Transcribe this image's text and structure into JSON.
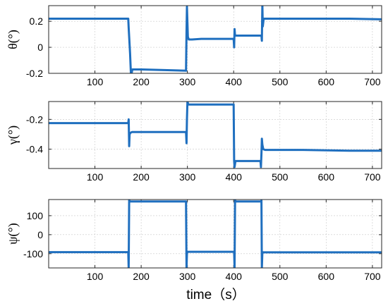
{
  "chart_data": [
    {
      "type": "line",
      "ylabel": "θ(°)",
      "xlim": [
        0,
        720
      ],
      "ylim": [
        -0.2,
        0.32
      ],
      "xticks": [
        100,
        200,
        300,
        400,
        500,
        600,
        700
      ],
      "yticks": [
        -0.2,
        0,
        0.2
      ],
      "ytick_labels": [
        "-0.2",
        "0",
        "0.2"
      ],
      "grid": true,
      "color": "#1f6fbf",
      "series": [
        {
          "x": [
            0,
            172,
            173,
            176,
            178,
            181,
            185,
            200,
            250,
            297,
            298,
            299,
            301,
            303,
            306,
            310,
            330,
            380,
            400,
            401,
            402,
            403,
            404,
            406,
            420,
            450,
            460,
            461,
            462,
            463,
            465,
            468,
            480,
            550,
            650,
            720
          ],
          "y": [
            0.22,
            0.22,
            0.15,
            -0.05,
            -0.22,
            -0.17,
            -0.17,
            -0.17,
            -0.175,
            -0.18,
            0.12,
            0.31,
            0.08,
            0.06,
            0.06,
            0.06,
            0.065,
            0.065,
            0.065,
            0.0,
            0.14,
            0.09,
            0.09,
            0.09,
            0.09,
            0.09,
            0.09,
            0.05,
            0.33,
            0.16,
            0.22,
            0.22,
            0.22,
            0.22,
            0.22,
            0.215
          ]
        }
      ]
    },
    {
      "type": "line",
      "ylabel": "γ(°)",
      "xlim": [
        0,
        720
      ],
      "ylim": [
        -0.53,
        -0.08
      ],
      "xticks": [
        100,
        200,
        300,
        400,
        500,
        600,
        700
      ],
      "yticks": [
        -0.4,
        -0.2
      ],
      "ytick_labels": [
        "-0.4",
        "-0.2"
      ],
      "grid": true,
      "color": "#1f6fbf",
      "series": [
        {
          "x": [
            0,
            172,
            173,
            174,
            175,
            177,
            180,
            200,
            250,
            297,
            298,
            299,
            300,
            302,
            305,
            350,
            400,
            401,
            402,
            404,
            406,
            420,
            458,
            459,
            460,
            461,
            462,
            464,
            468,
            480,
            550,
            650,
            720
          ],
          "y": [
            -0.225,
            -0.225,
            -0.2,
            -0.38,
            -0.3,
            -0.29,
            -0.285,
            -0.285,
            -0.285,
            -0.285,
            -0.36,
            -0.2,
            -0.08,
            -0.1,
            -0.1,
            -0.1,
            -0.1,
            -0.48,
            -0.52,
            -0.48,
            -0.48,
            -0.48,
            -0.48,
            -0.52,
            -0.43,
            -0.33,
            -0.37,
            -0.4,
            -0.405,
            -0.405,
            -0.405,
            -0.41,
            -0.41
          ]
        }
      ]
    },
    {
      "type": "line",
      "ylabel": "ψ(°)",
      "xlim": [
        0,
        720
      ],
      "ylim": [
        -175,
        185
      ],
      "xticks": [
        100,
        200,
        300,
        400,
        500,
        600,
        700
      ],
      "yticks": [
        -100,
        0,
        100
      ],
      "ytick_labels": [
        "-100",
        "0",
        "100"
      ],
      "grid": true,
      "color": "#1f6fbf",
      "series": [
        {
          "x": [
            0,
            172,
            173,
            174,
            175,
            177,
            200,
            250,
            297,
            298,
            299,
            300,
            302,
            350,
            401,
            402,
            403,
            404,
            406,
            430,
            459,
            460,
            461,
            462,
            464,
            480,
            550,
            650,
            720
          ],
          "y": [
            -92,
            -92,
            -175,
            185,
            175,
            175,
            175,
            175,
            175,
            -175,
            -100,
            -90,
            -90,
            -90,
            -90,
            -175,
            185,
            175,
            175,
            175,
            175,
            180,
            -175,
            -92,
            -93,
            -93,
            -93,
            -93,
            -93
          ]
        }
      ]
    }
  ],
  "xlabel": "time（s）"
}
